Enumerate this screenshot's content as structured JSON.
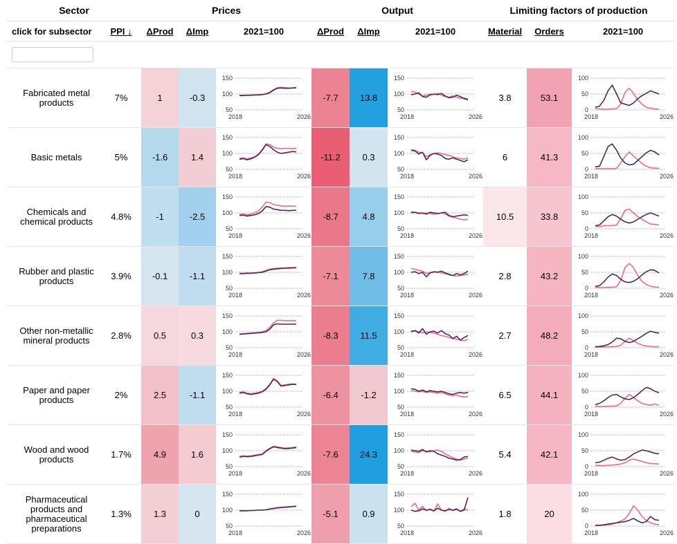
{
  "header": {
    "groups": {
      "sector": "Sector",
      "prices": "Prices",
      "output": "Output",
      "limiting": "Limiting factors of production"
    },
    "columns": {
      "subsector": "click for subsector",
      "ppi": "PPI ↓",
      "prices_dprod": "ΔProd",
      "prices_dimp": "ΔImp",
      "prices_index": "2021=100",
      "output_dprod": "ΔProd",
      "output_dimp": "ΔImp",
      "output_index": "2021=100",
      "material": "Material",
      "orders": "Orders",
      "limiting_index": "2021=100"
    }
  },
  "filter": {
    "placeholder": ""
  },
  "colors": {
    "red": "#e8556b",
    "blue": "#1f9fe0",
    "line_dark": "#4a2a5a",
    "line_pink": "#f06a85"
  },
  "spark_axes": {
    "prices": {
      "ticks": [
        "150",
        "100",
        "50"
      ],
      "tick_values": [
        150,
        100,
        50
      ],
      "ymin": 50,
      "ymax": 150
    },
    "output": {
      "ticks": [
        "150",
        "100",
        "50"
      ],
      "tick_values": [
        150,
        100,
        50
      ],
      "ymin": 50,
      "ymax": 150
    },
    "limiting": {
      "ticks": [
        "100",
        "50",
        "0"
      ],
      "tick_values": [
        100,
        50,
        0
      ],
      "ymin": 0,
      "ymax": 100
    },
    "x_start": "2018",
    "x_end": "2026"
  },
  "rows": [
    {
      "name": "Fabricated metal products",
      "ppi": "7%",
      "p_dprod": "1",
      "p_dimp": "-0.3",
      "o_dprod": "-7.7",
      "o_dimp": "13.8",
      "material": "3.8",
      "orders": "53.1",
      "vals": {
        "p_dprod": 1,
        "p_dimp": -0.3,
        "o_dprod": -7.7,
        "o_dimp": 13.8,
        "material": 3.8,
        "orders": 53.1
      },
      "prices": {
        "dark": [
          95,
          95,
          96,
          96,
          97,
          97,
          98,
          100,
          104,
          112,
          118,
          119,
          118,
          118,
          119,
          120
        ],
        "pink": [
          96,
          96,
          96,
          97,
          97,
          98,
          99,
          101,
          106,
          114,
          120,
          121,
          120,
          119,
          119,
          119
        ]
      },
      "output": {
        "dark": [
          98,
          100,
          104,
          92,
          90,
          97,
          100,
          98,
          102,
          94,
          88,
          90,
          96,
          92,
          85,
          82
        ],
        "pink": [
          108,
          106,
          100,
          94,
          96,
          100,
          98,
          102,
          96,
          92,
          90,
          94,
          90,
          86,
          88,
          84
        ]
      },
      "limiting": {
        "dark": [
          8,
          12,
          30,
          60,
          78,
          50,
          22,
          18,
          14,
          22,
          35,
          45,
          52,
          60,
          55,
          50
        ],
        "pink": [
          4,
          3,
          2,
          2,
          3,
          4,
          18,
          55,
          68,
          52,
          32,
          18,
          8,
          5,
          3,
          2
        ]
      }
    },
    {
      "name": "Basic metals",
      "ppi": "5%",
      "p_dprod": "-1.6",
      "p_dimp": "1.4",
      "o_dprod": "-11.2",
      "o_dimp": "0.3",
      "material": "6",
      "orders": "41.3",
      "vals": {
        "p_dprod": -1.6,
        "p_dimp": 1.4,
        "o_dprod": -11.2,
        "o_dimp": 0.3,
        "material": 6,
        "orders": 41.3
      },
      "prices": {
        "dark": [
          82,
          84,
          80,
          83,
          88,
          96,
          110,
          128,
          122,
          112,
          104,
          100,
          102,
          104,
          106,
          105
        ],
        "pink": [
          85,
          86,
          83,
          86,
          90,
          98,
          112,
          130,
          128,
          120,
          116,
          115,
          116,
          116,
          115,
          116
        ]
      },
      "output": {
        "dark": [
          110,
          108,
          98,
          104,
          80,
          94,
          100,
          98,
          94,
          84,
          82,
          86,
          82,
          78,
          74,
          80
        ],
        "pink": [
          112,
          110,
          104,
          102,
          90,
          96,
          100,
          102,
          100,
          96,
          94,
          90,
          86,
          84,
          82,
          86
        ]
      },
      "limiting": {
        "dark": [
          8,
          10,
          40,
          72,
          80,
          60,
          35,
          20,
          14,
          16,
          28,
          40,
          52,
          60,
          55,
          45
        ],
        "pink": [
          3,
          2,
          2,
          2,
          2,
          3,
          20,
          40,
          55,
          42,
          30,
          18,
          10,
          5,
          4,
          3
        ]
      }
    },
    {
      "name": "Chemicals and chemical products",
      "ppi": "4.8%",
      "p_dprod": "-1",
      "p_dimp": "-2.5",
      "o_dprod": "-8.7",
      "o_dimp": "4.8",
      "material": "10.5",
      "orders": "33.8",
      "vals": {
        "p_dprod": -1,
        "p_dimp": -2.5,
        "o_dprod": -8.7,
        "o_dimp": 4.8,
        "material": 10.5,
        "orders": 33.8
      },
      "prices": {
        "dark": [
          92,
          93,
          90,
          92,
          94,
          98,
          106,
          120,
          118,
          112,
          110,
          108,
          108,
          107,
          108,
          108
        ],
        "pink": [
          95,
          96,
          94,
          96,
          100,
          106,
          118,
          134,
          132,
          126,
          124,
          122,
          121,
          122,
          121,
          121
        ]
      },
      "output": {
        "dark": [
          100,
          102,
          98,
          100,
          96,
          102,
          100,
          98,
          100,
          102,
          92,
          88,
          90,
          92,
          94,
          92
        ],
        "pink": [
          104,
          102,
          100,
          98,
          100,
          98,
          96,
          98,
          100,
          96,
          90,
          86,
          84,
          80,
          78,
          80
        ]
      },
      "limiting": {
        "dark": [
          10,
          12,
          25,
          38,
          45,
          40,
          30,
          22,
          18,
          22,
          30,
          38,
          45,
          50,
          45,
          40
        ],
        "pink": [
          8,
          6,
          10,
          10,
          10,
          12,
          32,
          58,
          62,
          50,
          38,
          30,
          22,
          15,
          14,
          12
        ]
      }
    },
    {
      "name": "Rubber and plastic products",
      "ppi": "3.9%",
      "p_dprod": "-0.1",
      "p_dimp": "-1.1",
      "o_dprod": "-7.1",
      "o_dimp": "7.8",
      "material": "2.8",
      "orders": "43.2",
      "vals": {
        "p_dprod": -0.1,
        "p_dimp": -1.1,
        "o_dprod": -7.1,
        "o_dimp": 7.8,
        "material": 2.8,
        "orders": 43.2
      },
      "prices": {
        "dark": [
          96,
          96,
          97,
          97,
          98,
          99,
          100,
          104,
          108,
          110,
          111,
          112,
          113,
          113,
          114,
          114
        ],
        "pink": [
          97,
          97,
          98,
          98,
          99,
          100,
          102,
          106,
          110,
          112,
          113,
          114,
          114,
          115,
          115,
          115
        ]
      },
      "output": {
        "dark": [
          100,
          102,
          96,
          100,
          86,
          98,
          102,
          100,
          104,
          98,
          94,
          90,
          96,
          92,
          96,
          104
        ],
        "pink": [
          112,
          110,
          106,
          104,
          96,
          100,
          100,
          102,
          98,
          96,
          92,
          90,
          88,
          90,
          92,
          94
        ]
      },
      "limiting": {
        "dark": [
          6,
          8,
          20,
          35,
          45,
          40,
          28,
          20,
          18,
          22,
          30,
          42,
          52,
          58,
          56,
          48
        ],
        "pink": [
          3,
          2,
          2,
          3,
          3,
          5,
          25,
          65,
          78,
          65,
          40,
          22,
          12,
          6,
          4,
          3
        ]
      }
    },
    {
      "name": "Other non-metallic mineral products",
      "ppi": "2.8%",
      "p_dprod": "0.5",
      "p_dimp": "0.3",
      "o_dprod": "-8.3",
      "o_dimp": "11.5",
      "material": "2.7",
      "orders": "48.2",
      "vals": {
        "p_dprod": 0.5,
        "p_dimp": 0.3,
        "o_dprod": -8.3,
        "o_dimp": 11.5,
        "material": 2.7,
        "orders": 48.2
      },
      "prices": {
        "dark": [
          92,
          93,
          94,
          95,
          96,
          97,
          98,
          100,
          108,
          122,
          125,
          124,
          124,
          124,
          124,
          124
        ],
        "pink": [
          93,
          94,
          95,
          96,
          97,
          98,
          100,
          104,
          114,
          128,
          136,
          136,
          135,
          135,
          135,
          135
        ]
      },
      "output": {
        "dark": [
          100,
          104,
          96,
          110,
          92,
          100,
          102,
          96,
          104,
          94,
          90,
          78,
          86,
          74,
          82,
          88
        ],
        "pink": [
          104,
          102,
          100,
          96,
          100,
          98,
          96,
          92,
          88,
          86,
          82,
          80,
          76,
          74,
          72,
          76
        ]
      },
      "limiting": {
        "dark": [
          3,
          4,
          6,
          10,
          18,
          30,
          28,
          20,
          16,
          20,
          28,
          36,
          45,
          52,
          48,
          46
        ],
        "pink": [
          2,
          2,
          2,
          3,
          3,
          4,
          8,
          20,
          30,
          22,
          14,
          8,
          5,
          4,
          3,
          3
        ]
      }
    },
    {
      "name": "Paper and paper products",
      "ppi": "2%",
      "p_dprod": "2.5",
      "p_dimp": "-1.1",
      "o_dprod": "-6.4",
      "o_dimp": "-1.2",
      "material": "6.5",
      "orders": "44.1",
      "vals": {
        "p_dprod": 2.5,
        "p_dimp": -1.1,
        "o_dprod": -6.4,
        "o_dimp": -1.2,
        "material": 6.5,
        "orders": 44.1
      },
      "prices": {
        "dark": [
          94,
          96,
          92,
          90,
          92,
          94,
          98,
          106,
          120,
          138,
          130,
          116,
          118,
          120,
          122,
          121
        ],
        "pink": [
          96,
          98,
          94,
          92,
          94,
          96,
          100,
          108,
          122,
          140,
          132,
          118,
          120,
          122,
          123,
          122
        ]
      },
      "output": {
        "dark": [
          108,
          106,
          100,
          104,
          98,
          102,
          100,
          98,
          100,
          96,
          92,
          90,
          94,
          96,
          94,
          96
        ],
        "pink": [
          102,
          100,
          98,
          100,
          96,
          98,
          96,
          94,
          96,
          92,
          88,
          86,
          88,
          84,
          82,
          84
        ]
      },
      "limiting": {
        "dark": [
          8,
          12,
          20,
          30,
          38,
          40,
          32,
          26,
          24,
          30,
          40,
          52,
          62,
          58,
          50,
          45
        ],
        "pink": [
          3,
          2,
          2,
          3,
          3,
          4,
          12,
          28,
          40,
          30,
          20,
          12,
          8,
          6,
          10,
          6
        ]
      }
    },
    {
      "name": "Wood and wood products",
      "ppi": "1.7%",
      "p_dprod": "4.9",
      "p_dimp": "1.6",
      "o_dprod": "-7.6",
      "o_dimp": "24.3",
      "material": "5.4",
      "orders": "42.1",
      "vals": {
        "p_dprod": 4.9,
        "p_dimp": 1.6,
        "o_dprod": -7.6,
        "o_dimp": 24.3,
        "material": 5.4,
        "orders": 42.1
      },
      "prices": {
        "dark": [
          80,
          82,
          81,
          82,
          84,
          86,
          88,
          98,
          106,
          112,
          110,
          108,
          106,
          107,
          108,
          110
        ],
        "pink": [
          82,
          84,
          83,
          84,
          86,
          88,
          90,
          100,
          108,
          114,
          112,
          110,
          108,
          109,
          110,
          112
        ]
      },
      "output": {
        "dark": [
          102,
          100,
          98,
          104,
          96,
          100,
          98,
          90,
          86,
          82,
          76,
          74,
          70,
          72,
          80,
          82
        ],
        "pink": [
          98,
          96,
          94,
          100,
          98,
          96,
          100,
          102,
          98,
          90,
          84,
          78,
          74,
          70,
          74,
          76
        ]
      },
      "limiting": {
        "dark": [
          12,
          14,
          20,
          26,
          30,
          24,
          20,
          22,
          30,
          40,
          46,
          52,
          50,
          46,
          42,
          40
        ],
        "pink": [
          4,
          3,
          3,
          4,
          5,
          6,
          8,
          12,
          20,
          24,
          20,
          16,
          12,
          10,
          9,
          8
        ]
      }
    },
    {
      "name": "Pharmaceutical products and pharmaceutical preparations",
      "ppi": "1.3%",
      "p_dprod": "1.3",
      "p_dimp": "0",
      "o_dprod": "-5.1",
      "o_dimp": "0.9",
      "material": "1.8",
      "orders": "20",
      "vals": {
        "p_dprod": 1.3,
        "p_dimp": 0,
        "o_dprod": -5.1,
        "o_dimp": 0.9,
        "material": 1.8,
        "orders": 20
      },
      "prices": {
        "dark": [
          98,
          98,
          98,
          99,
          99,
          100,
          100,
          101,
          103,
          105,
          107,
          108,
          109,
          110,
          111,
          112
        ],
        "pink": [
          98,
          98,
          98,
          99,
          99,
          100,
          100,
          101,
          104,
          106,
          108,
          109,
          110,
          111,
          112,
          113
        ],
        "spike": false
      },
      "output": {
        "dark": [
          100,
          96,
          98,
          104,
          100,
          102,
          98,
          106,
          100,
          98,
          102,
          100,
          104,
          96,
          100,
          140
        ],
        "pink": [
          110,
          122,
          100,
          112,
          98,
          104,
          96,
          120,
          100,
          96,
          106,
          98,
          102,
          96,
          104,
          100
        ]
      },
      "limiting": {
        "dark": [
          2,
          2,
          4,
          6,
          8,
          10,
          12,
          14,
          18,
          24,
          16,
          10,
          14,
          30,
          20,
          18
        ],
        "pink": [
          2,
          2,
          3,
          4,
          6,
          10,
          16,
          22,
          40,
          64,
          50,
          30,
          18,
          10,
          6,
          4
        ]
      }
    }
  ]
}
